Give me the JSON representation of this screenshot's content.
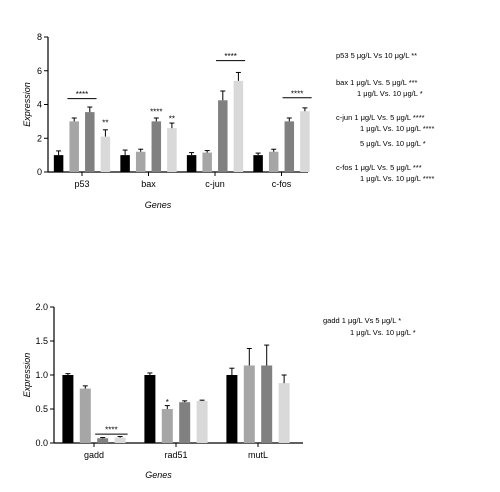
{
  "chart_data": [
    {
      "type": "bar",
      "xlabel": "Genes",
      "ylabel": "Expression",
      "ylim": [
        0,
        8
      ],
      "yticks": [
        "0",
        "2",
        "4",
        "6",
        "8"
      ],
      "categories": [
        "p53",
        "bax",
        "c-jun",
        "c-fos"
      ],
      "series": [
        {
          "color": "#000000",
          "values": [
            1.0,
            1.0,
            1.0,
            1.0
          ],
          "errors": [
            0.25,
            0.3,
            0.15,
            0.12
          ]
        },
        {
          "color": "#a6a6a6",
          "values": [
            3.0,
            1.2,
            1.15,
            1.2
          ],
          "errors": [
            0.2,
            0.15,
            0.12,
            0.15
          ]
        },
        {
          "color": "#808080",
          "values": [
            3.55,
            3.0,
            4.25,
            3.0
          ],
          "errors": [
            0.3,
            0.2,
            0.55,
            0.2
          ]
        },
        {
          "color": "#d9d9d9",
          "values": [
            2.1,
            2.6,
            5.4,
            3.6
          ],
          "errors": [
            0.4,
            0.3,
            0.5,
            0.2
          ]
        }
      ],
      "significance": [
        {
          "label": "****",
          "category": 0,
          "from": 1,
          "to": 2,
          "y": 4.35
        },
        {
          "label": "**",
          "category": 0,
          "series": 3,
          "y": 2.75
        },
        {
          "label": "****",
          "category": 1,
          "series": 2,
          "y": 3.4
        },
        {
          "label": "**",
          "category": 1,
          "series": 3,
          "y": 3.0
        },
        {
          "label": "****",
          "category": 2,
          "from": 2,
          "to": 3,
          "y": 6.6
        },
        {
          "label": "****",
          "category": 3,
          "from": 2,
          "to": 3,
          "y": 4.4
        }
      ]
    },
    {
      "type": "bar",
      "xlabel": "Genes",
      "ylabel": "Expression",
      "ylim": [
        0,
        2.0
      ],
      "yticks": [
        "0.0",
        "0.5",
        "1.0",
        "1.5",
        "2.0"
      ],
      "categories": [
        "gadd",
        "rad51",
        "mutL"
      ],
      "series": [
        {
          "color": "#000000",
          "values": [
            1.0,
            1.0,
            1.0
          ],
          "errors": [
            0.02,
            0.03,
            0.1
          ]
        },
        {
          "color": "#a6a6a6",
          "values": [
            0.8,
            0.5,
            1.14
          ],
          "errors": [
            0.04,
            0.05,
            0.25
          ]
        },
        {
          "color": "#808080",
          "values": [
            0.07,
            0.6,
            1.14
          ],
          "errors": [
            0.01,
            0.02,
            0.3
          ]
        },
        {
          "color": "#d9d9d9",
          "values": [
            0.08,
            0.62,
            0.88
          ],
          "errors": [
            0.015,
            0.01,
            0.12
          ]
        }
      ],
      "significance": [
        {
          "label": "*",
          "category": 1,
          "series": 1,
          "y": 0.56
        },
        {
          "label": "****",
          "category": 0,
          "from": 2,
          "to": 3,
          "y": 0.13
        }
      ]
    }
  ],
  "notes_top": [
    "p53 5 μg/L Vs 10 μg/L   **",
    "bax 1 μg/L Vs. 5 μg/L   ***",
    "1 μg/L Vs. 10 μg/L   *",
    "c-jun 1 μg/L Vs. 5 μg/L   ****",
    "1 μg/L Vs. 10 μg/L   ****",
    "5 μg/L Vs. 10 μg/L   *",
    "c-fos 1 μg/L Vs. 5 μg/L   ***",
    "1 μg/L Vs. 10 μg/L   ****"
  ],
  "notes_bottom": [
    "gadd 1 μg/L Vs  5 μg/L   *",
    "1 μg/L Vs. 10 μg/L   *"
  ]
}
